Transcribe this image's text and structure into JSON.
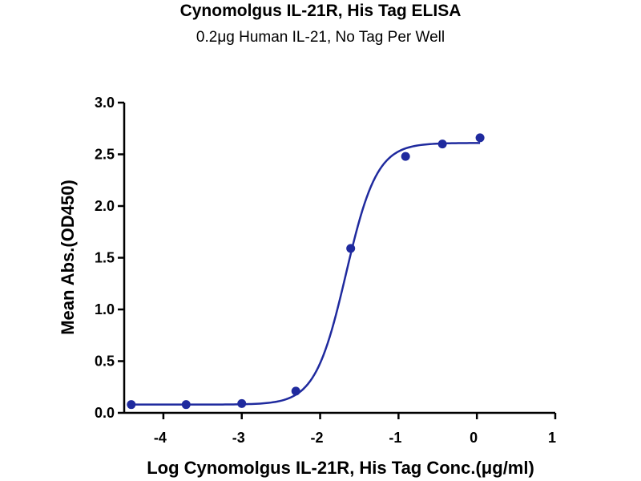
{
  "chart_data": {
    "type": "scatter",
    "title": "Cynomolgus IL-21R, His Tag ELISA",
    "subtitle": "0.2μg Human IL-21, No Tag Per Well",
    "xlabel": "Log Cynomolgus IL-21R, His Tag Conc.(μg/ml)",
    "ylabel": "Mean Abs.(OD450)",
    "xlim": [
      -4.5,
      1
    ],
    "ylim": [
      0,
      3
    ],
    "xticks": [
      -4,
      -3,
      -2,
      -1,
      0,
      1
    ],
    "xtick_labels": [
      "-4",
      "-3",
      "-2",
      "-1",
      "0",
      "1"
    ],
    "yticks": [
      0,
      0.5,
      1,
      1.5,
      2,
      2.5,
      3
    ],
    "ytick_labels": [
      "0.0",
      "0.5",
      "1.0",
      "1.5",
      "2.0",
      "2.5",
      "3.0"
    ],
    "grid": false,
    "color": "#1f2a9e",
    "series": [
      {
        "x": [
          -4.41,
          -3.71,
          -3.0,
          -2.31,
          -1.61,
          -0.91,
          -0.44,
          0.04
        ],
        "y": [
          0.08,
          0.08,
          0.09,
          0.21,
          1.59,
          2.48,
          2.6,
          2.66
        ]
      }
    ],
    "fit_curve": {
      "model": "four-parameter logistic",
      "bottom": 0.08,
      "top": 2.61,
      "log_ec50": -1.67,
      "hill_slope": 2.2
    }
  }
}
